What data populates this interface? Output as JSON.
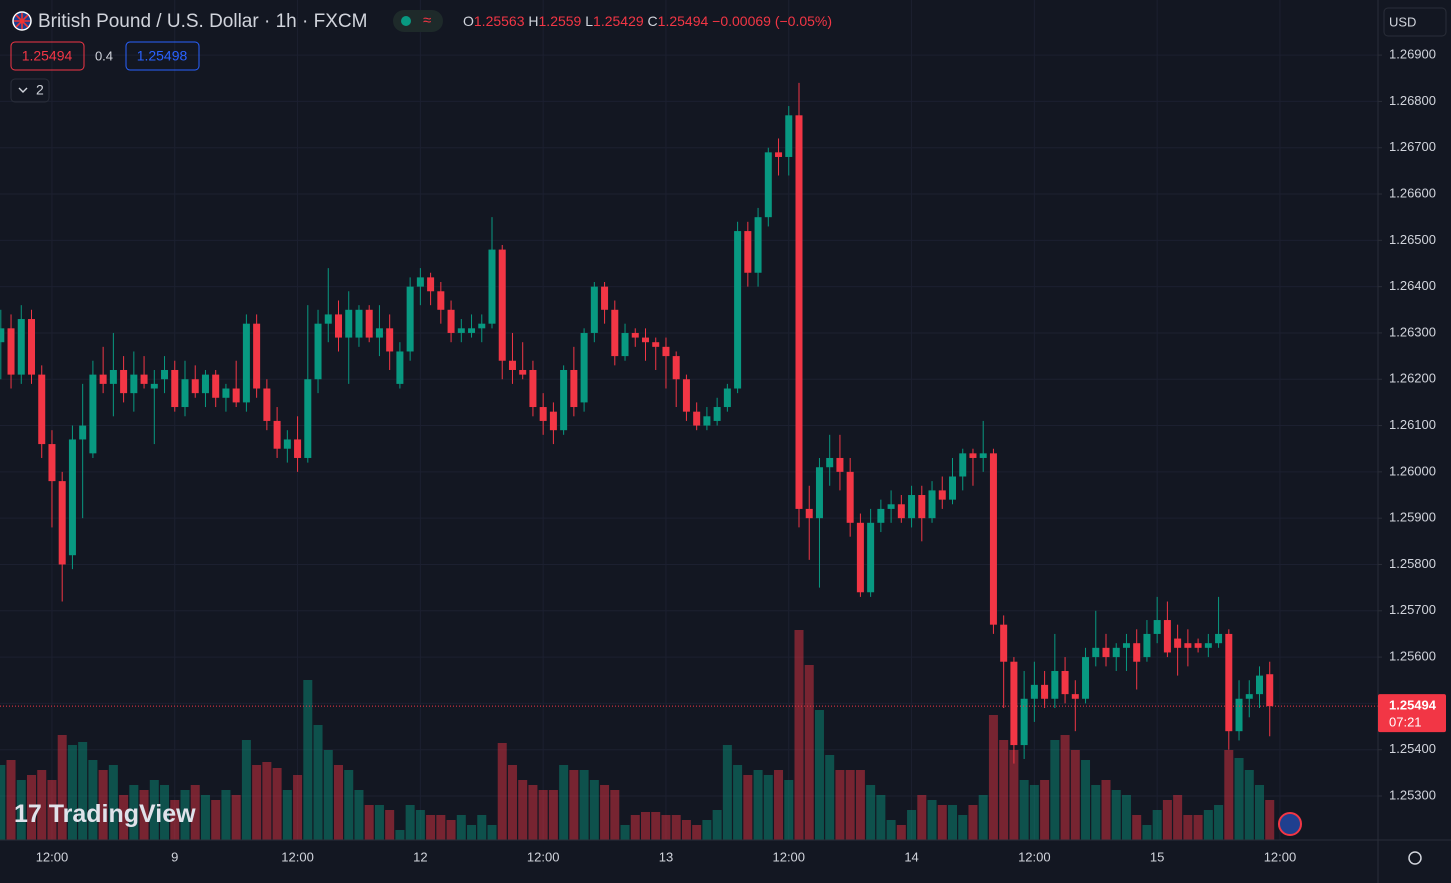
{
  "header": {
    "title": "British Pound / U.S. Dollar · 1h · FXCM",
    "ohlc_labels": [
      "O",
      "H",
      "L",
      "C"
    ],
    "change": "−0.00069 (−0.05%)"
  },
  "toolbar": {
    "sell": "1.25494",
    "spread": "0.4",
    "buy": "1.25498",
    "collapse": "2",
    "currency": "USD",
    "countdown": "07:21",
    "logo": "TradingView"
  },
  "chart_data": {
    "type": "candlestick",
    "up_color": "#089981",
    "down_color": "#f23645",
    "grid": true,
    "categories": [
      null,
      null,
      null,
      null,
      null,
      "12:00",
      null,
      null,
      null,
      null,
      null,
      null,
      null,
      null,
      null,
      null,
      null,
      "9",
      null,
      null,
      null,
      null,
      null,
      null,
      null,
      null,
      null,
      null,
      null,
      "12:00",
      null,
      null,
      null,
      null,
      null,
      null,
      null,
      null,
      null,
      null,
      null,
      "12",
      null,
      null,
      null,
      null,
      null,
      null,
      null,
      null,
      null,
      null,
      null,
      "12:00",
      null,
      null,
      null,
      null,
      null,
      null,
      null,
      null,
      null,
      null,
      null,
      "13",
      null,
      null,
      null,
      null,
      null,
      null,
      null,
      null,
      null,
      null,
      null,
      "12:00",
      null,
      null,
      null,
      null,
      null,
      null,
      null,
      null,
      null,
      null,
      null,
      "14",
      null,
      null,
      null,
      null,
      null,
      null,
      null,
      null,
      null,
      null,
      null,
      "12:00",
      null,
      null,
      null,
      null,
      null,
      null,
      null,
      null,
      null,
      null,
      null,
      "15",
      null,
      null,
      null,
      null,
      null,
      null,
      null,
      null,
      null,
      null,
      null,
      "12:00"
    ],
    "ohlc": [
      [
        1.2628,
        1.2635,
        1.262,
        1.2631
      ],
      [
        1.2631,
        1.2634,
        1.2618,
        1.2621
      ],
      [
        1.2621,
        1.2636,
        1.2619,
        1.2633
      ],
      [
        1.2633,
        1.2635,
        1.2619,
        1.2621
      ],
      [
        1.2621,
        1.2623,
        1.2603,
        1.2606
      ],
      [
        1.2606,
        1.2609,
        1.2588,
        1.2598
      ],
      [
        1.2598,
        1.26,
        1.2572,
        1.258
      ],
      [
        1.2582,
        1.261,
        1.2579,
        1.2607
      ],
      [
        1.2607,
        1.2619,
        1.259,
        1.261
      ],
      [
        1.2604,
        1.2624,
        1.2603,
        1.2621
      ],
      [
        1.2621,
        1.2627,
        1.2617,
        1.2619
      ],
      [
        1.2619,
        1.263,
        1.2612,
        1.2622
      ],
      [
        1.2622,
        1.2625,
        1.2615,
        1.2617
      ],
      [
        1.2617,
        1.2626,
        1.2613,
        1.2621
      ],
      [
        1.2621,
        1.2625,
        1.2618,
        1.2619
      ],
      [
        1.2618,
        1.2622,
        1.2606,
        1.2619
      ],
      [
        1.262,
        1.2625,
        1.2617,
        1.2622
      ],
      [
        1.2622,
        1.2624,
        1.2613,
        1.2614
      ],
      [
        1.2614,
        1.2624,
        1.2612,
        1.262
      ],
      [
        1.262,
        1.2623,
        1.2616,
        1.2617
      ],
      [
        1.2617,
        1.2622,
        1.2614,
        1.2621
      ],
      [
        1.2621,
        1.2622,
        1.2614,
        1.2616
      ],
      [
        1.2616,
        1.2619,
        1.2613,
        1.2618
      ],
      [
        1.2618,
        1.2624,
        1.2614,
        1.2615
      ],
      [
        1.2615,
        1.2634,
        1.2613,
        1.2632
      ],
      [
        1.2632,
        1.2634,
        1.2616,
        1.2618
      ],
      [
        1.2618,
        1.262,
        1.2609,
        1.2611
      ],
      [
        1.2611,
        1.2614,
        1.2603,
        1.2605
      ],
      [
        1.2605,
        1.2609,
        1.2602,
        1.2607
      ],
      [
        1.2607,
        1.2612,
        1.26,
        1.2603
      ],
      [
        1.2603,
        1.2636,
        1.2602,
        1.262
      ],
      [
        1.262,
        1.2635,
        1.2617,
        1.2632
      ],
      [
        1.2632,
        1.2644,
        1.2628,
        1.2634
      ],
      [
        1.2634,
        1.2637,
        1.2626,
        1.2629
      ],
      [
        1.2629,
        1.2639,
        1.2619,
        1.2635
      ],
      [
        1.2629,
        1.2636,
        1.2627,
        1.2635
      ],
      [
        1.2635,
        1.2636,
        1.2628,
        1.2629
      ],
      [
        1.2629,
        1.2636,
        1.2625,
        1.2631
      ],
      [
        1.2631,
        1.2634,
        1.2622,
        1.2626
      ],
      [
        1.2619,
        1.2628,
        1.2618,
        1.2626
      ],
      [
        1.2626,
        1.2642,
        1.2624,
        1.264
      ],
      [
        1.264,
        1.2644,
        1.2636,
        1.2642
      ],
      [
        1.2642,
        1.2643,
        1.2636,
        1.2639
      ],
      [
        1.2639,
        1.2641,
        1.2632,
        1.2635
      ],
      [
        1.2635,
        1.2637,
        1.2628,
        1.263
      ],
      [
        1.263,
        1.2633,
        1.2628,
        1.2631
      ],
      [
        1.263,
        1.2634,
        1.2629,
        1.2631
      ],
      [
        1.2631,
        1.2634,
        1.2628,
        1.2632
      ],
      [
        1.2632,
        1.2655,
        1.2631,
        1.2648
      ],
      [
        1.2648,
        1.2649,
        1.262,
        1.2624
      ],
      [
        1.2624,
        1.263,
        1.2619,
        1.2622
      ],
      [
        1.2622,
        1.2628,
        1.262,
        1.2621
      ],
      [
        1.2622,
        1.2624,
        1.2612,
        1.2614
      ],
      [
        1.2614,
        1.2617,
        1.2608,
        1.2611
      ],
      [
        1.2613,
        1.2615,
        1.2606,
        1.2609
      ],
      [
        1.2609,
        1.2623,
        1.2608,
        1.2622
      ],
      [
        1.2622,
        1.2627,
        1.2612,
        1.2614
      ],
      [
        1.2615,
        1.2631,
        1.2613,
        1.263
      ],
      [
        1.263,
        1.2641,
        1.2628,
        1.264
      ],
      [
        1.264,
        1.2641,
        1.2632,
        1.2635
      ],
      [
        1.2635,
        1.2637,
        1.2623,
        1.2625
      ],
      [
        1.2625,
        1.2632,
        1.2624,
        1.263
      ],
      [
        1.263,
        1.2631,
        1.2627,
        1.2629
      ],
      [
        1.2629,
        1.2631,
        1.2624,
        1.2628
      ],
      [
        1.2628,
        1.2629,
        1.2622,
        1.2627
      ],
      [
        1.2627,
        1.2629,
        1.2618,
        1.2625
      ],
      [
        1.2625,
        1.2626,
        1.2614,
        1.262
      ],
      [
        1.262,
        1.2621,
        1.2611,
        1.2613
      ],
      [
        1.2613,
        1.2615,
        1.2609,
        1.261
      ],
      [
        1.261,
        1.2614,
        1.2609,
        1.2612
      ],
      [
        1.2611,
        1.2616,
        1.261,
        1.2614
      ],
      [
        1.2614,
        1.2619,
        1.2613,
        1.2618
      ],
      [
        1.2618,
        1.2654,
        1.2617,
        1.2652
      ],
      [
        1.2652,
        1.2654,
        1.264,
        1.2643
      ],
      [
        1.2643,
        1.2657,
        1.264,
        1.2655
      ],
      [
        1.2655,
        1.267,
        1.2653,
        1.2669
      ],
      [
        1.2669,
        1.2672,
        1.2664,
        1.2668
      ],
      [
        1.2668,
        1.2679,
        1.2664,
        1.2677
      ],
      [
        1.2677,
        1.2684,
        1.2588,
        1.2592
      ],
      [
        1.2592,
        1.2597,
        1.2581,
        1.259
      ],
      [
        1.259,
        1.2603,
        1.2575,
        1.2601
      ],
      [
        1.2601,
        1.2608,
        1.2597,
        1.2603
      ],
      [
        1.2603,
        1.2608,
        1.2596,
        1.26
      ],
      [
        1.26,
        1.2603,
        1.2586,
        1.2589
      ],
      [
        1.2589,
        1.2591,
        1.2573,
        1.2574
      ],
      [
        1.2574,
        1.2592,
        1.2573,
        1.2589
      ],
      [
        1.2589,
        1.2594,
        1.2587,
        1.2592
      ],
      [
        1.2592,
        1.2596,
        1.2589,
        1.2593
      ],
      [
        1.2593,
        1.2595,
        1.2589,
        1.259
      ],
      [
        1.259,
        1.2597,
        1.2588,
        1.2595
      ],
      [
        1.2595,
        1.2597,
        1.2585,
        1.259
      ],
      [
        1.259,
        1.2598,
        1.2589,
        1.2596
      ],
      [
        1.2596,
        1.2599,
        1.2592,
        1.2594
      ],
      [
        1.2594,
        1.2603,
        1.2593,
        1.2599
      ],
      [
        1.2599,
        1.2605,
        1.2596,
        1.2604
      ],
      [
        1.2604,
        1.2605,
        1.2597,
        1.2603
      ],
      [
        1.2603,
        1.2611,
        1.26,
        1.2604
      ],
      [
        1.2604,
        1.2605,
        1.2565,
        1.2567
      ],
      [
        1.2567,
        1.2569,
        1.2549,
        1.2559
      ],
      [
        1.2559,
        1.256,
        1.2537,
        1.2541
      ],
      [
        1.2541,
        1.2557,
        1.2538,
        1.2551
      ],
      [
        1.2551,
        1.2559,
        1.2546,
        1.2554
      ],
      [
        1.2554,
        1.2557,
        1.2549,
        1.2551
      ],
      [
        1.2551,
        1.2565,
        1.2549,
        1.2557
      ],
      [
        1.2557,
        1.256,
        1.255,
        1.2552
      ],
      [
        1.2552,
        1.2555,
        1.2544,
        1.2551
      ],
      [
        1.2551,
        1.2562,
        1.255,
        1.256
      ],
      [
        1.256,
        1.257,
        1.2558,
        1.2562
      ],
      [
        1.2562,
        1.2565,
        1.2558,
        1.256
      ],
      [
        1.256,
        1.2563,
        1.2557,
        1.2562
      ],
      [
        1.2562,
        1.2565,
        1.2557,
        1.2563
      ],
      [
        1.2563,
        1.2566,
        1.2553,
        1.2559
      ],
      [
        1.256,
        1.2568,
        1.2559,
        1.2565
      ],
      [
        1.2565,
        1.2573,
        1.2563,
        1.2568
      ],
      [
        1.2568,
        1.2572,
        1.256,
        1.2561
      ],
      [
        1.2564,
        1.2567,
        1.2556,
        1.2562
      ],
      [
        1.2563,
        1.2566,
        1.2558,
        1.2562
      ],
      [
        1.2563,
        1.2564,
        1.2561,
        1.2562
      ],
      [
        1.2562,
        1.2565,
        1.256,
        1.2563
      ],
      [
        1.2563,
        1.2573,
        1.2562,
        1.2565
      ],
      [
        1.2565,
        1.2566,
        1.254,
        1.2544
      ],
      [
        1.2544,
        1.2555,
        1.2542,
        1.2551
      ],
      [
        1.2551,
        1.2555,
        1.2547,
        1.2552
      ],
      [
        1.2552,
        1.2558,
        1.2549,
        1.2556
      ],
      [
        1.25563,
        1.2559,
        1.25429,
        1.25494
      ],
      null
    ],
    "volume": [
      75,
      80,
      60,
      65,
      70,
      60,
      105,
      95,
      98,
      80,
      70,
      75,
      45,
      55,
      50,
      60,
      55,
      40,
      50,
      55,
      45,
      40,
      50,
      45,
      100,
      75,
      78,
      72,
      50,
      65,
      160,
      115,
      90,
      75,
      70,
      50,
      35,
      35,
      30,
      10,
      35,
      30,
      25,
      25,
      20,
      25,
      15,
      25,
      15,
      97,
      75,
      60,
      55,
      50,
      50,
      75,
      70,
      70,
      60,
      55,
      50,
      15,
      25,
      28,
      28,
      25,
      25,
      20,
      15,
      20,
      30,
      95,
      75,
      65,
      70,
      65,
      70,
      60,
      210,
      175,
      130,
      85,
      70,
      70,
      70,
      55,
      45,
      20,
      15,
      30,
      45,
      40,
      35,
      35,
      25,
      35,
      45,
      125,
      100,
      90,
      60,
      55,
      60,
      100,
      105,
      90,
      80,
      55,
      60,
      50,
      45,
      25,
      15,
      30,
      40,
      45,
      25,
      25,
      30,
      35,
      90,
      82,
      70,
      55,
      40,
      null
    ],
    "ylim": [
      1.25205,
      1.27019
    ],
    "yticks": [
      {
        "value": 1.253,
        "label": "1.25300"
      },
      {
        "value": 1.254,
        "label": "1.25400"
      },
      {
        "value": 1.255,
        "label": "1.25500"
      },
      {
        "value": 1.256,
        "label": "1.25600"
      },
      {
        "value": 1.257,
        "label": "1.25700"
      },
      {
        "value": 1.258,
        "label": "1.25800"
      },
      {
        "value": 1.259,
        "label": "1.25900"
      },
      {
        "value": 1.26,
        "label": "1.26000"
      },
      {
        "value": 1.261,
        "label": "1.26100"
      },
      {
        "value": 1.262,
        "label": "1.26200"
      },
      {
        "value": 1.263,
        "label": "1.26300"
      },
      {
        "value": 1.264,
        "label": "1.26400"
      },
      {
        "value": 1.265,
        "label": "1.26500"
      },
      {
        "value": 1.266,
        "label": "1.26600"
      },
      {
        "value": 1.267,
        "label": "1.26700"
      },
      {
        "value": 1.268,
        "label": "1.26800"
      },
      {
        "value": 1.269,
        "label": "1.26900"
      }
    ]
  }
}
